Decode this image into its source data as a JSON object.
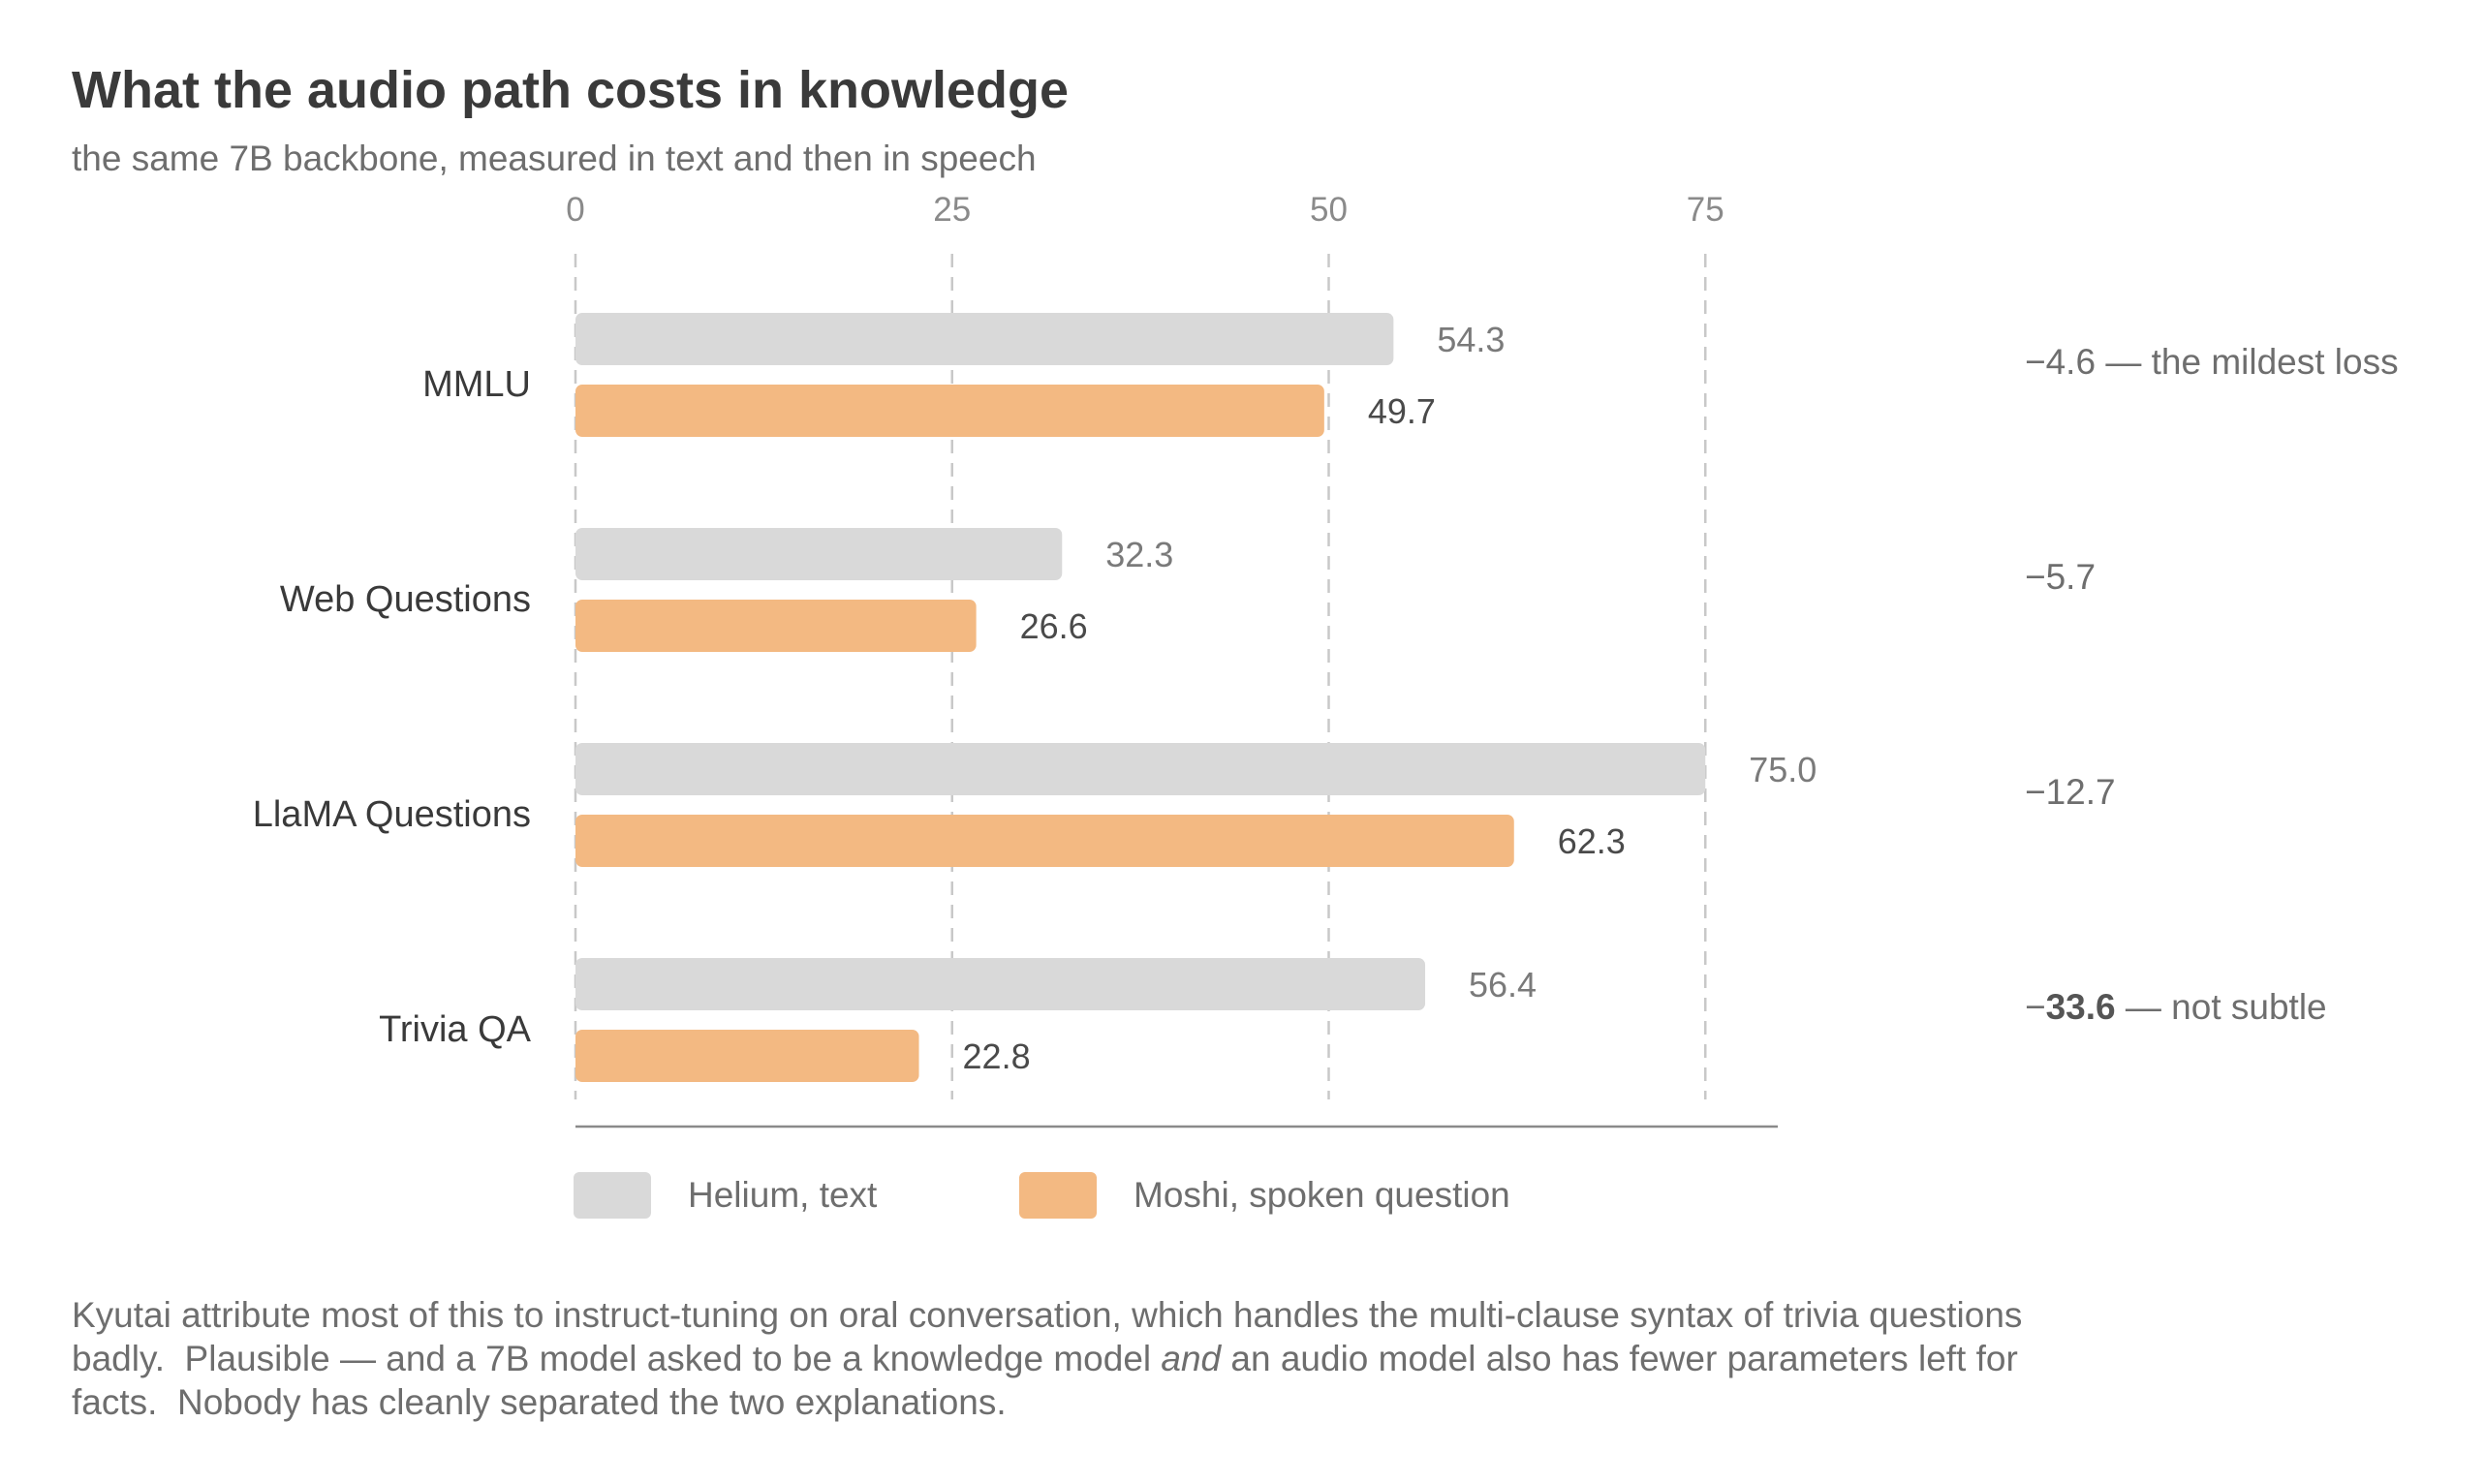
{
  "title": "What the audio path costs in knowledge",
  "subtitle": "the same 7B backbone, measured in text and then in speech",
  "colors": {
    "text_series": "#d9d9d9",
    "spoken_series": "#f3b982",
    "grid": "#c8c8c8",
    "axis": "#8a8a8a"
  },
  "chart_data": {
    "type": "bar",
    "orientation": "horizontal",
    "categories": [
      "MMLU",
      "Web Questions",
      "LlaMA Questions",
      "Trivia QA"
    ],
    "series": [
      {
        "name": "Helium, text",
        "values": [
          54.3,
          32.3,
          75.0,
          56.4
        ],
        "labels": [
          "54.3",
          "32.3",
          "75.0",
          "56.4"
        ]
      },
      {
        "name": "Moshi, spoken question",
        "values": [
          49.7,
          26.6,
          62.3,
          22.8
        ],
        "labels": [
          "49.7",
          "26.6",
          "62.3",
          "22.8"
        ]
      }
    ],
    "x_ticks": [
      "0",
      "25",
      "50",
      "75"
    ],
    "xlim": [
      0,
      80
    ],
    "grid": "vertical dashed",
    "legend_position": "bottom",
    "deltas": [
      {
        "sign": "−",
        "value": "4.6",
        "note": " — the mildest loss",
        "bold": false
      },
      {
        "sign": "−",
        "value": "5.7",
        "note": "",
        "bold": false
      },
      {
        "sign": "−",
        "value": "12.7",
        "note": "",
        "bold": false
      },
      {
        "sign": "−",
        "value": "33.6",
        "note": " — not subtle",
        "bold": true
      }
    ]
  },
  "legend": {
    "text_label": "Helium, text",
    "spoken_label": "Moshi, spoken question"
  },
  "note": {
    "part1": "Kyutai attribute most of this to instruct-tuning on oral conversation, which handles the multi-clause syntax of trivia questions badly.  Plausible — and a 7B model asked to be a knowledge model ",
    "em": "and",
    "part2": " an audio model also has fewer parameters left for facts.  Nobody has cleanly separated the two explanations."
  }
}
